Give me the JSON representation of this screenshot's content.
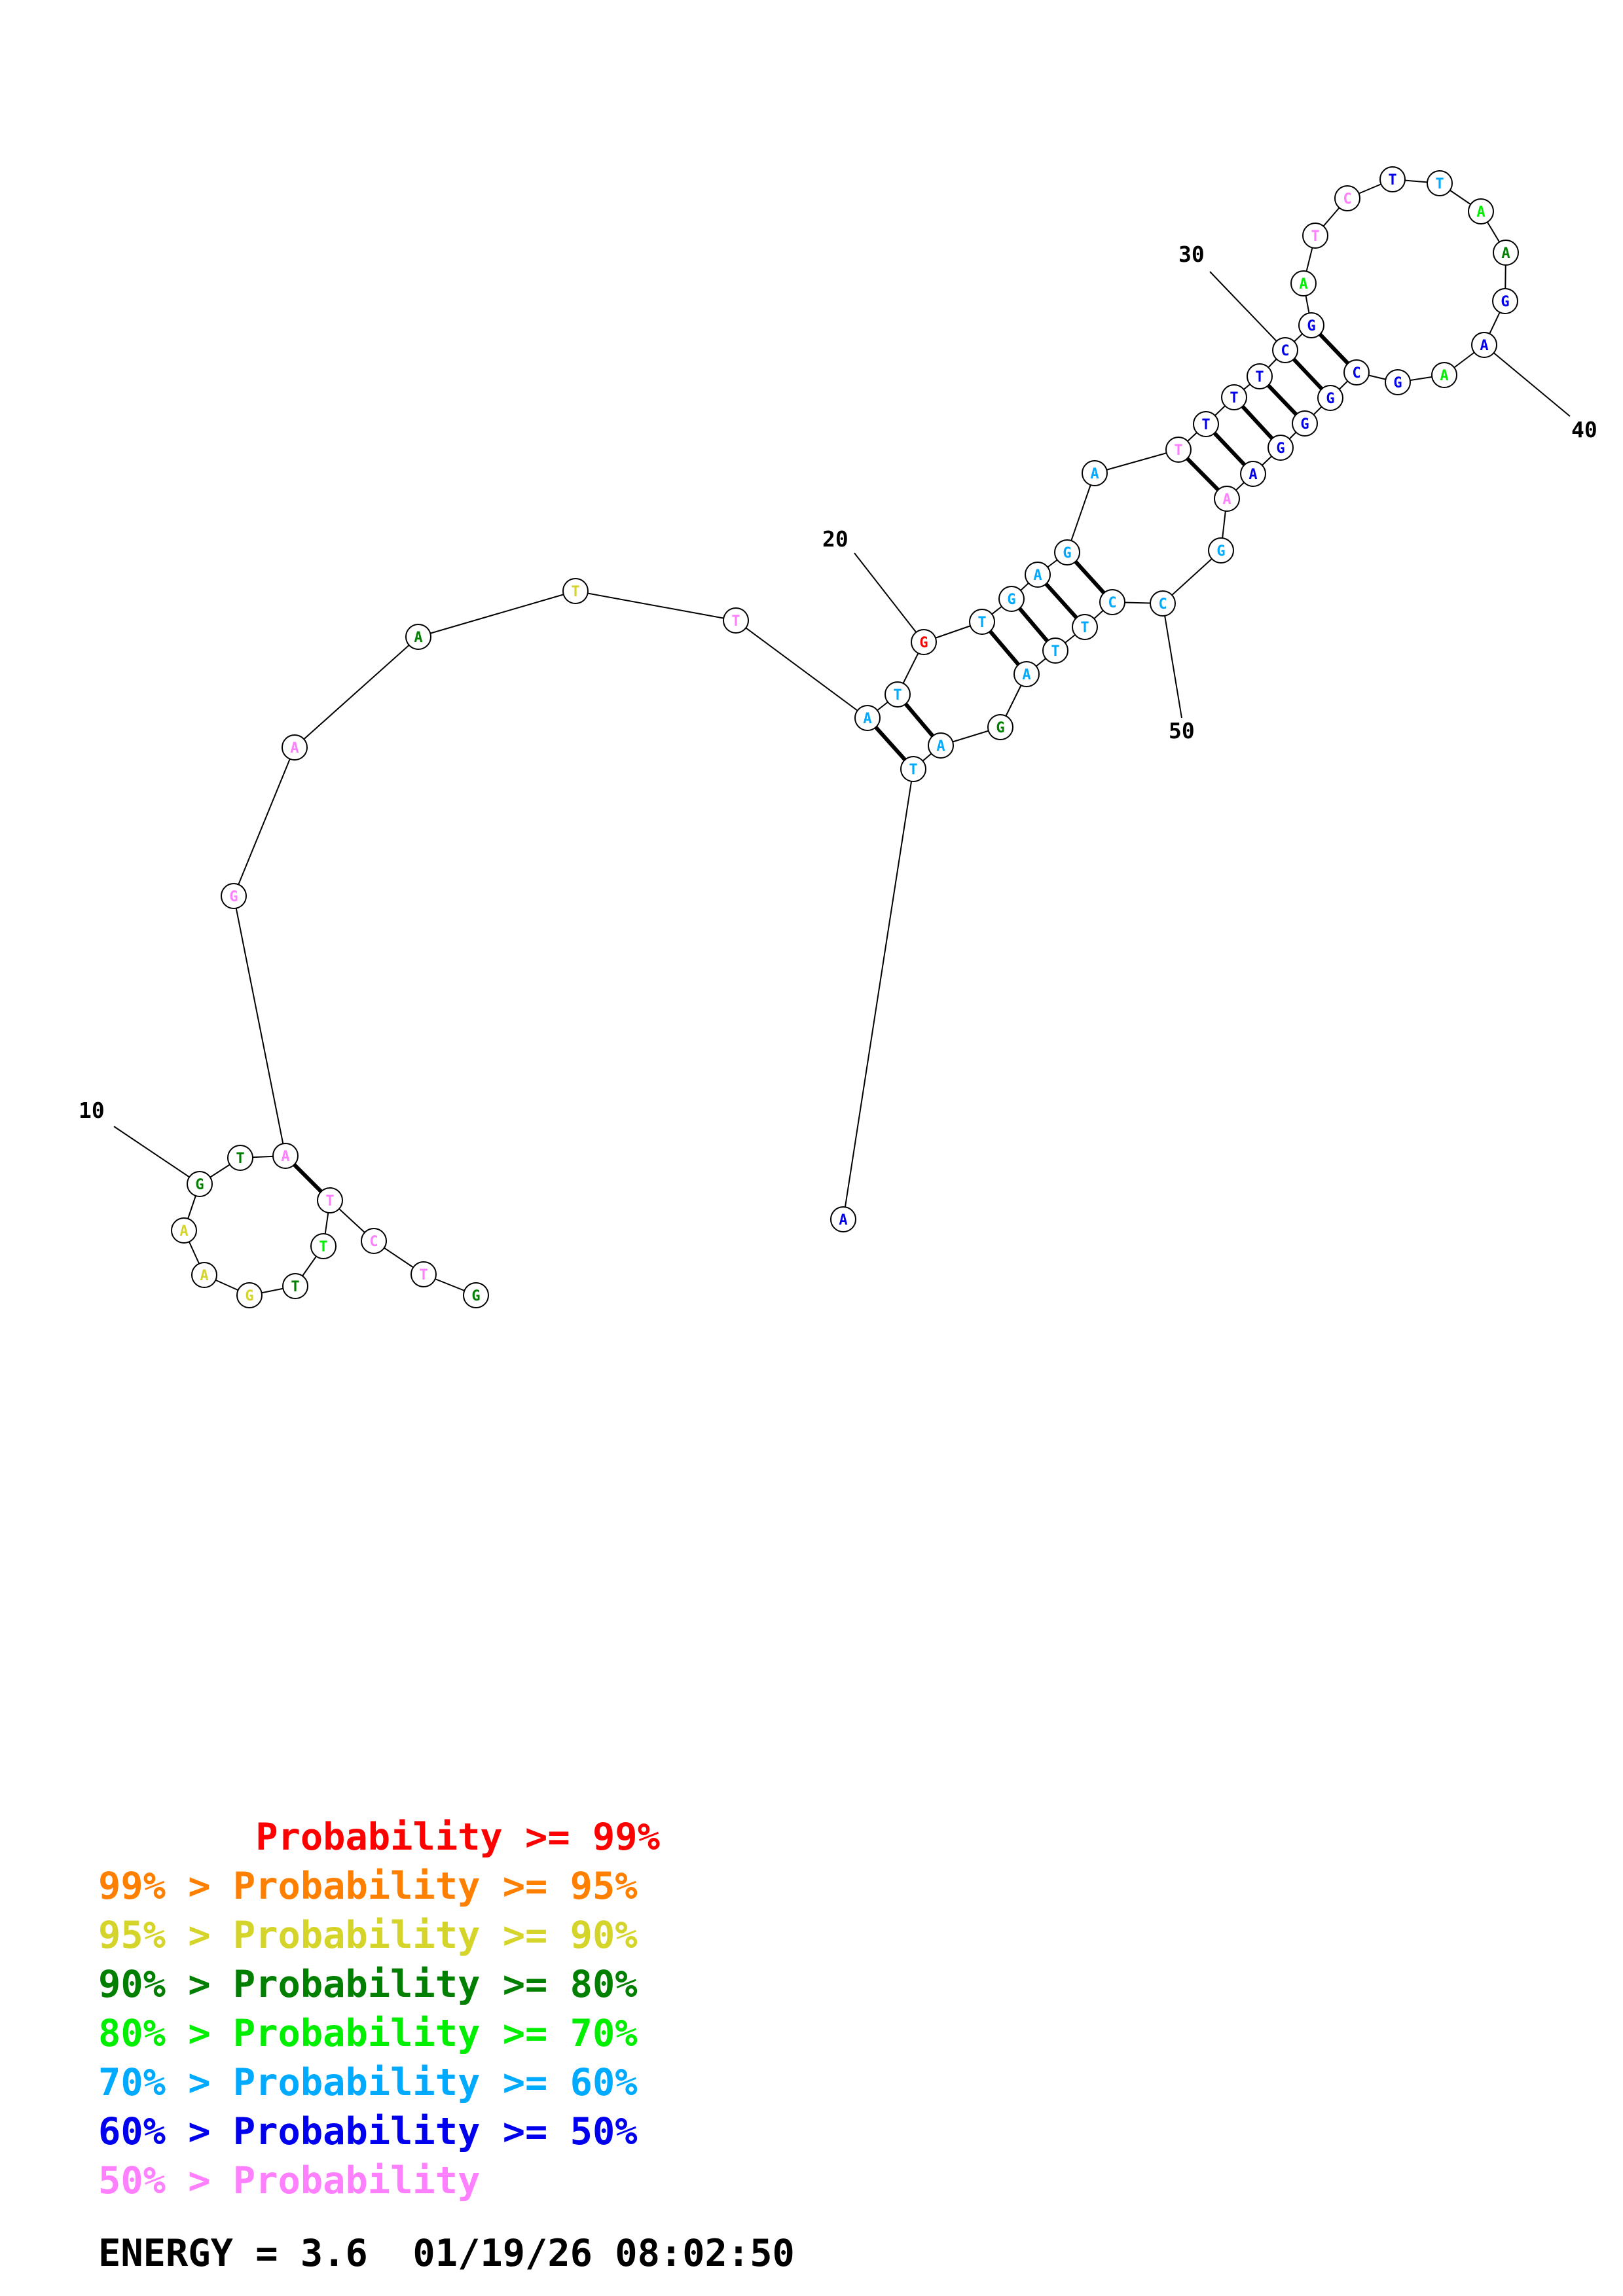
{
  "colors": {
    "p99": "#ff0000",
    "p95": "#ff7f00",
    "p90": "#d4d42a",
    "p80": "#007f00",
    "p70": "#00ee00",
    "p60": "#00aaff",
    "p50": "#0000ee",
    "plow": "#ff80ff"
  },
  "nucleotides": [
    {
      "n": 1,
      "base": "G",
      "cls": "p80"
    },
    {
      "n": 2,
      "base": "T",
      "cls": "plow"
    },
    {
      "n": 3,
      "base": "C",
      "cls": "plow"
    },
    {
      "n": 4,
      "base": "T",
      "cls": "plow"
    },
    {
      "n": 5,
      "base": "T",
      "cls": "p70"
    },
    {
      "n": 6,
      "base": "T",
      "cls": "p80"
    },
    {
      "n": 7,
      "base": "G",
      "cls": "p90"
    },
    {
      "n": 8,
      "base": "A",
      "cls": "p90"
    },
    {
      "n": 9,
      "base": "A",
      "cls": "p90"
    },
    {
      "n": 10,
      "base": "G",
      "cls": "p80"
    },
    {
      "n": 11,
      "base": "T",
      "cls": "p80"
    },
    {
      "n": 12,
      "base": "A",
      "cls": "plow"
    },
    {
      "n": 13,
      "base": "G",
      "cls": "plow"
    },
    {
      "n": 14,
      "base": "A",
      "cls": "plow"
    },
    {
      "n": 15,
      "base": "A",
      "cls": "p80"
    },
    {
      "n": 16,
      "base": "T",
      "cls": "p90"
    },
    {
      "n": 17,
      "base": "T",
      "cls": "plow"
    },
    {
      "n": 18,
      "base": "A",
      "cls": "p60"
    },
    {
      "n": 19,
      "base": "T",
      "cls": "p60"
    },
    {
      "n": 20,
      "base": "G",
      "cls": "p99"
    },
    {
      "n": 21,
      "base": "T",
      "cls": "p60"
    },
    {
      "n": 22,
      "base": "G",
      "cls": "p60"
    },
    {
      "n": 23,
      "base": "A",
      "cls": "p60"
    },
    {
      "n": 24,
      "base": "G",
      "cls": "p60"
    },
    {
      "n": 25,
      "base": "A",
      "cls": "p60"
    },
    {
      "n": 26,
      "base": "T",
      "cls": "plow"
    },
    {
      "n": 27,
      "base": "T",
      "cls": "p50"
    },
    {
      "n": 28,
      "base": "T",
      "cls": "p50"
    },
    {
      "n": 29,
      "base": "T",
      "cls": "p50"
    },
    {
      "n": 30,
      "base": "C",
      "cls": "p50"
    },
    {
      "n": 31,
      "base": "G",
      "cls": "p50"
    },
    {
      "n": 32,
      "base": "A",
      "cls": "p70"
    },
    {
      "n": 33,
      "base": "T",
      "cls": "plow"
    },
    {
      "n": 34,
      "base": "C",
      "cls": "plow"
    },
    {
      "n": 35,
      "base": "T",
      "cls": "p50"
    },
    {
      "n": 36,
      "base": "T",
      "cls": "p60"
    },
    {
      "n": 37,
      "base": "A",
      "cls": "p70"
    },
    {
      "n": 38,
      "base": "A",
      "cls": "p80"
    },
    {
      "n": 39,
      "base": "G",
      "cls": "p50"
    },
    {
      "n": 40,
      "base": "A",
      "cls": "p50"
    },
    {
      "n": 41,
      "base": "A",
      "cls": "p70"
    },
    {
      "n": 42,
      "base": "G",
      "cls": "p50"
    },
    {
      "n": 43,
      "base": "C",
      "cls": "p50"
    },
    {
      "n": 44,
      "base": "G",
      "cls": "p50"
    },
    {
      "n": 45,
      "base": "G",
      "cls": "p50"
    },
    {
      "n": 46,
      "base": "G",
      "cls": "p50"
    },
    {
      "n": 47,
      "base": "A",
      "cls": "p50"
    },
    {
      "n": 48,
      "base": "A",
      "cls": "plow"
    },
    {
      "n": 49,
      "base": "G",
      "cls": "p60"
    },
    {
      "n": 50,
      "base": "C",
      "cls": "p60"
    },
    {
      "n": 51,
      "base": "C",
      "cls": "p60"
    },
    {
      "n": 52,
      "base": "T",
      "cls": "p60"
    },
    {
      "n": 53,
      "base": "T",
      "cls": "p60"
    },
    {
      "n": 54,
      "base": "A",
      "cls": "p60"
    },
    {
      "n": 55,
      "base": "G",
      "cls": "p80"
    },
    {
      "n": 56,
      "base": "A",
      "cls": "p60"
    },
    {
      "n": 57,
      "base": "T",
      "cls": "p60"
    },
    {
      "n": 58,
      "base": "A",
      "cls": "p50"
    }
  ],
  "pairs": [
    [
      4,
      12
    ],
    [
      18,
      57
    ],
    [
      19,
      56
    ],
    [
      21,
      54
    ],
    [
      22,
      53
    ],
    [
      23,
      52
    ],
    [
      24,
      51
    ],
    [
      26,
      48
    ],
    [
      27,
      47
    ],
    [
      28,
      46
    ],
    [
      29,
      45
    ],
    [
      30,
      44
    ],
    [
      31,
      43
    ]
  ],
  "index_labels": [
    {
      "n": 10,
      "text": "10"
    },
    {
      "n": 20,
      "text": "20"
    },
    {
      "n": 30,
      "text": "30"
    },
    {
      "n": 40,
      "text": "40"
    },
    {
      "n": 50,
      "text": "50"
    }
  ],
  "legend": [
    {
      "text": "       Probability >= 99%",
      "cls": "p99"
    },
    {
      "text": "99% > Probability >= 95%",
      "cls": "p95"
    },
    {
      "text": "95% > Probability >= 90%",
      "cls": "p90"
    },
    {
      "text": "90% > Probability >= 80%",
      "cls": "p80"
    },
    {
      "text": "80% > Probability >= 70%",
      "cls": "p70"
    },
    {
      "text": "70% > Probability >= 60%",
      "cls": "p60"
    },
    {
      "text": "60% > Probability >= 50%",
      "cls": "p50"
    },
    {
      "text": "50% > Probability",
      "cls": "plow"
    }
  ],
  "energy_line": "ENERGY = 3.6  01/19/26 08:02:50"
}
